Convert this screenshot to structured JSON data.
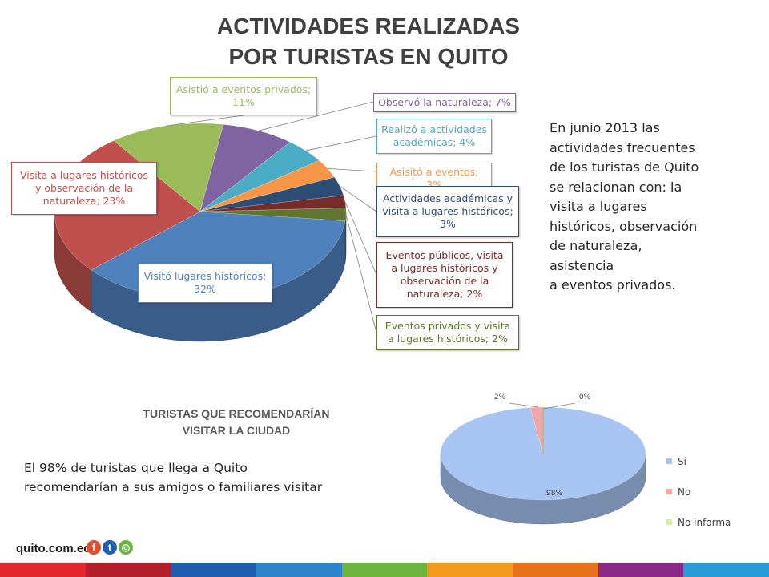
{
  "title": {
    "line1": "ACTIVIDADES REALIZADAS",
    "line2": "POR TURISTAS EN QUITO"
  },
  "summary_text": "En junio 2013 las\nactividades frecuentes\nde los turistas de Quito\nse relacionan con: la\nvisita a lugares\nhistóricos, observación\nde naturaleza,\nasistencia\na eventos privados.",
  "chart_data": [
    {
      "type": "pie",
      "title": "ACTIVIDADES REALIZADAS POR TURISTAS EN QUITO",
      "unit": "%",
      "slices": [
        {
          "label": "Visitó lugares históricos",
          "value": 32,
          "display": "Visitó lugares históricos; 32%",
          "color": "#4F81BD"
        },
        {
          "label": "Visita a lugares históricos y observación de la naturaleza",
          "value": 23,
          "display": "Visita a lugares históricos y observación de la naturaleza; 23%",
          "color": "#C0504D"
        },
        {
          "label": "Asistió a eventos privados",
          "value": 11,
          "display": "Asistió a eventos privados; 11%",
          "color": "#9BBB59"
        },
        {
          "label": "Observó la naturaleza",
          "value": 7,
          "display": "Observó la naturaleza; 7%",
          "color": "#8064A2"
        },
        {
          "label": "Realizó a actividades académicas",
          "value": 4,
          "display": "Realizó a actividades académicas; 4%",
          "color": "#4BACC6"
        },
        {
          "label": "Asisitó a eventos",
          "value": 3,
          "display": "Asisitó a eventos; 3%",
          "color": "#F79646"
        },
        {
          "label": "Actividades académicas y visita a lugares históricos",
          "value": 3,
          "display": "Actividades académicas y visita a lugares históricos; 3%",
          "color": "#2C4D75"
        },
        {
          "label": "Eventos públicos, visita a lugares históricos y observación de la naturaleza",
          "value": 2,
          "display": "Eventos públicos, visita a lugares históricos y observación de la naturaleza; 2%",
          "color": "#772C2A"
        },
        {
          "label": "Eventos privados y visita a lugares históricos",
          "value": 2,
          "display": "Eventos privados y visita a lugares históricos; 2%",
          "color": "#5F7530"
        }
      ]
    },
    {
      "type": "pie",
      "title": "TURISTAS QUE RECOMENDARÍAN VISITAR LA CIUDAD",
      "slices": [
        {
          "label": "Si",
          "value": 98,
          "display": "98%",
          "color": "#A7C4F2"
        },
        {
          "label": "No",
          "value": 2,
          "display": "2%",
          "color": "#F2A6A6"
        },
        {
          "label": "No informa",
          "value": 0,
          "display": "0%",
          "color": "#D7EEB0"
        }
      ],
      "legend": [
        "Si",
        "No",
        "No informa"
      ],
      "legend_position": "right"
    }
  ],
  "recommend": {
    "title_line1": "TURISTAS QUE RECOMENDARÍAN",
    "title_line2": "VISITAR LA CIUDAD",
    "text_line1": "El 98% de turistas que llega a Quito",
    "text_line2": "recomendarían  a sus amigos o familiares visitar"
  },
  "footer": {
    "logo_text": "quito.com.ec",
    "social_icons": [
      "facebook-icon",
      "twitter-icon",
      "instagram-icon"
    ],
    "stripe_colors": [
      "#E3262D",
      "#B41E2A",
      "#1F5FAE",
      "#2E83C9",
      "#6DB33F",
      "#F39A1E",
      "#E8721C",
      "#8A2A86",
      "#2A9BD6"
    ]
  }
}
